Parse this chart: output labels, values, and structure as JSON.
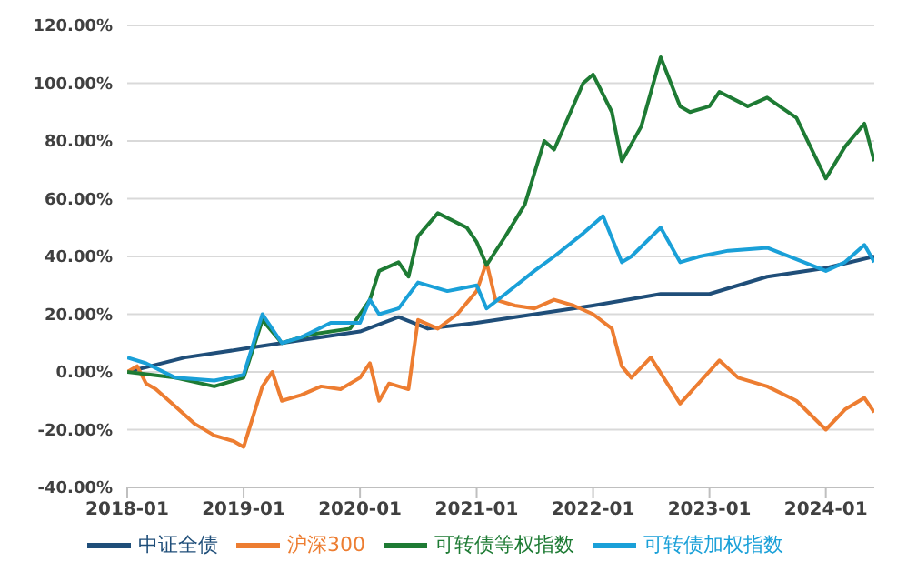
{
  "chart_data": {
    "type": "line",
    "xlim": [
      "2018-01",
      "2024-06"
    ],
    "xticks": [
      "2018-01",
      "2019-01",
      "2020-01",
      "2021-01",
      "2022-01",
      "2023-01",
      "2024-01"
    ],
    "ylim": [
      -40,
      120
    ],
    "yticks": [
      {
        "value": -40,
        "label": "-40.00%"
      },
      {
        "value": -20,
        "label": "-20.00%"
      },
      {
        "value": 0,
        "label": "0.00%"
      },
      {
        "value": 20,
        "label": "20.00%"
      },
      {
        "value": 40,
        "label": "40.00%"
      },
      {
        "value": 60,
        "label": "60.00%"
      },
      {
        "value": 80,
        "label": "80.00%"
      },
      {
        "value": 100,
        "label": "100.00%"
      },
      {
        "value": 120,
        "label": "120.00%"
      }
    ],
    "grid": "y",
    "legend": "bottom",
    "marker": "none",
    "line_style": "solid",
    "series": [
      {
        "name": "中证全债",
        "color": "#1f4e79",
        "x": [
          "2018-01",
          "2018-07",
          "2019-01",
          "2019-07",
          "2020-01",
          "2020-05",
          "2020-08",
          "2021-01",
          "2022-01",
          "2022-08",
          "2023-01",
          "2023-07",
          "2024-01",
          "2024-06"
        ],
        "values": [
          0,
          5,
          8,
          11,
          14,
          19,
          15,
          17,
          23,
          27,
          27,
          33,
          36,
          40
        ]
      },
      {
        "name": "沪深300",
        "color": "#ed7d31",
        "x": [
          "2018-01",
          "2018-02",
          "2018-03",
          "2018-04",
          "2018-06",
          "2018-08",
          "2018-10",
          "2018-12",
          "2019-01",
          "2019-03",
          "2019-04",
          "2019-05",
          "2019-07",
          "2019-09",
          "2019-11",
          "2020-01",
          "2020-02",
          "2020-03",
          "2020-04",
          "2020-06",
          "2020-07",
          "2020-09",
          "2020-11",
          "2021-01",
          "2021-02",
          "2021-03",
          "2021-05",
          "2021-07",
          "2021-09",
          "2021-11",
          "2022-01",
          "2022-03",
          "2022-04",
          "2022-05",
          "2022-07",
          "2022-10",
          "2023-02",
          "2023-04",
          "2023-07",
          "2023-10",
          "2024-01",
          "2024-03",
          "2024-05",
          "2024-06"
        ],
        "values": [
          0,
          2,
          -4,
          -6,
          -12,
          -18,
          -22,
          -24,
          -26,
          -5,
          0,
          -10,
          -8,
          -5,
          -6,
          -2,
          3,
          -10,
          -4,
          -6,
          18,
          15,
          20,
          28,
          38,
          25,
          23,
          22,
          25,
          23,
          20,
          15,
          2,
          -2,
          5,
          -11,
          4,
          -2,
          -5,
          -10,
          -20,
          -13,
          -9,
          -14
        ]
      },
      {
        "name": "可转债等权指数",
        "color": "#1e7b34",
        "x": [
          "2018-01",
          "2018-06",
          "2018-10",
          "2019-01",
          "2019-03",
          "2019-05",
          "2019-08",
          "2019-12",
          "2020-02",
          "2020-03",
          "2020-05",
          "2020-06",
          "2020-07",
          "2020-09",
          "2020-12",
          "2021-01",
          "2021-02",
          "2021-04",
          "2021-06",
          "2021-08",
          "2021-09",
          "2021-12",
          "2022-01",
          "2022-03",
          "2022-04",
          "2022-06",
          "2022-08",
          "2022-10",
          "2022-11",
          "2023-01",
          "2023-02",
          "2023-05",
          "2023-07",
          "2023-10",
          "2024-01",
          "2024-03",
          "2024-05",
          "2024-06"
        ],
        "values": [
          0,
          -2,
          -5,
          -2,
          18,
          10,
          13,
          15,
          25,
          35,
          38,
          33,
          47,
          55,
          50,
          45,
          37,
          47,
          58,
          80,
          77,
          100,
          103,
          90,
          73,
          85,
          109,
          92,
          90,
          92,
          97,
          92,
          95,
          88,
          67,
          78,
          86,
          73
        ]
      },
      {
        "name": "可转债加权指数",
        "color": "#1aa0d8",
        "x": [
          "2018-01",
          "2018-03",
          "2018-06",
          "2018-10",
          "2019-01",
          "2019-03",
          "2019-05",
          "2019-07",
          "2019-10",
          "2020-01",
          "2020-02",
          "2020-03",
          "2020-05",
          "2020-07",
          "2020-10",
          "2021-01",
          "2021-02",
          "2021-04",
          "2021-07",
          "2021-09",
          "2021-12",
          "2022-02",
          "2022-04",
          "2022-05",
          "2022-08",
          "2022-10",
          "2022-12",
          "2023-03",
          "2023-07",
          "2023-10",
          "2024-01",
          "2024-03",
          "2024-05",
          "2024-06"
        ],
        "values": [
          5,
          3,
          -2,
          -3,
          -1,
          20,
          10,
          12,
          17,
          17,
          25,
          20,
          22,
          31,
          28,
          30,
          22,
          27,
          35,
          40,
          48,
          54,
          38,
          40,
          50,
          38,
          40,
          42,
          43,
          39,
          35,
          38,
          44,
          38
        ]
      }
    ]
  }
}
